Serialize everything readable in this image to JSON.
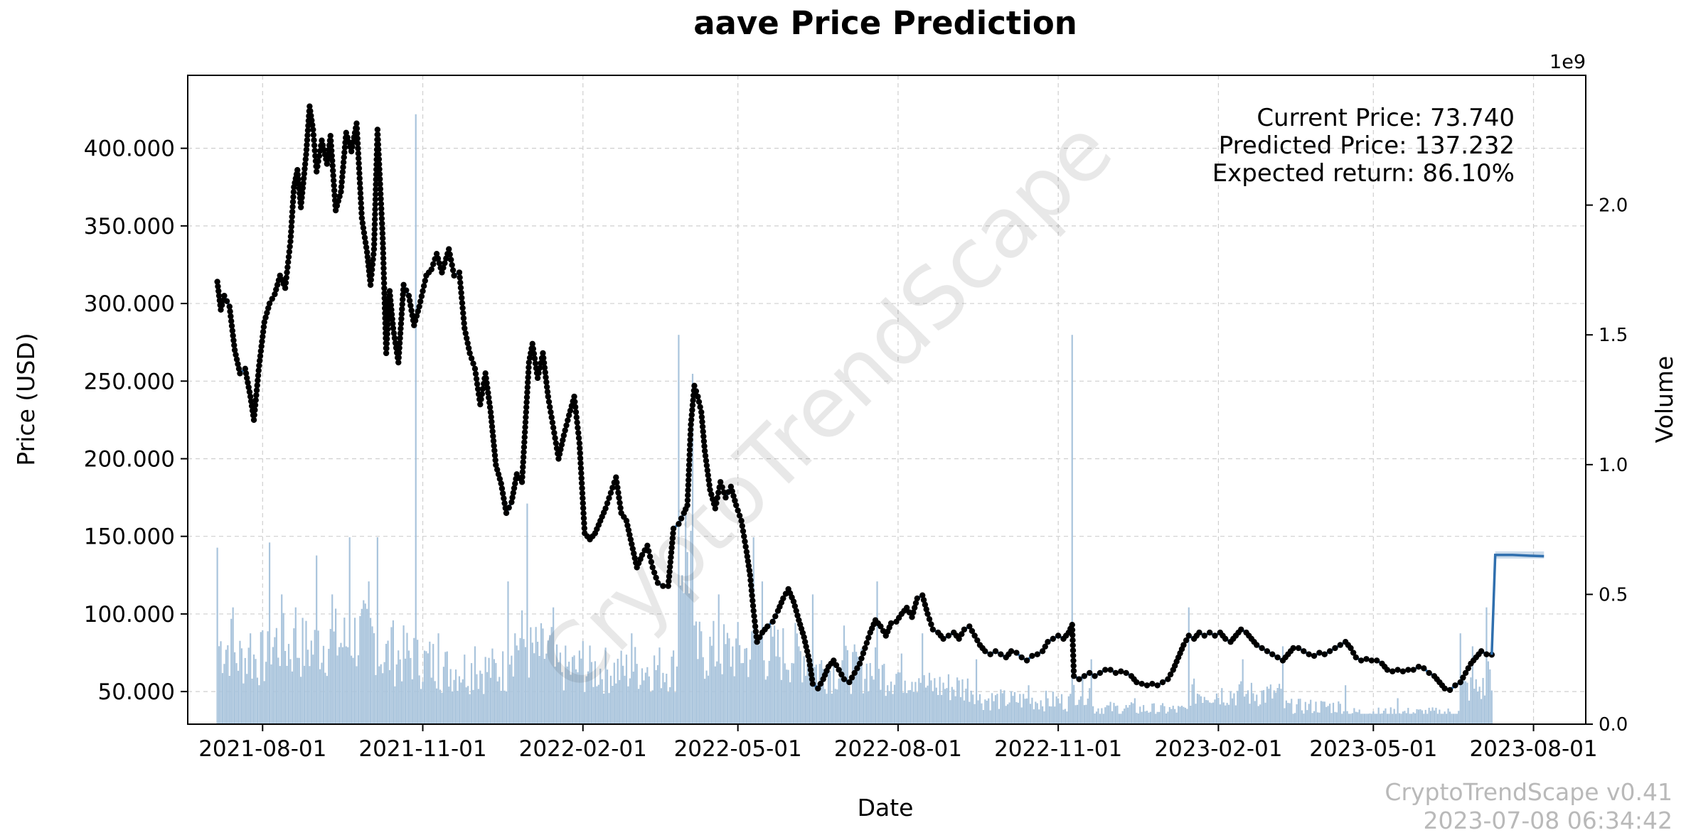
{
  "chart_data": {
    "type": "line",
    "title": "aave Price Prediction",
    "xlabel": "Date",
    "ylabel": "Price (USD)",
    "y2label": "Volume",
    "y2_offset_label": "1e9",
    "x_tick_labels": [
      "2021-08-01",
      "2021-11-01",
      "2022-02-01",
      "2022-05-01",
      "2022-08-01",
      "2022-11-01",
      "2023-02-01",
      "2023-05-01",
      "2023-08-01"
    ],
    "y_tick_labels": [
      "50.000",
      "100.000",
      "150.000",
      "200.000",
      "250.000",
      "300.000",
      "350.000",
      "400.000"
    ],
    "y2_tick_labels": [
      "0.0",
      "0.5",
      "1.0",
      "1.5",
      "2.0"
    ],
    "xlim": [
      "2021-06-19",
      "2023-08-31"
    ],
    "ylim": [
      29,
      447
    ],
    "y2lim": [
      0,
      2.5
    ],
    "grid": true,
    "colors": {
      "price_line": "#2f6fae",
      "price_points": "#000000",
      "volume_bars": "#a9c4dc",
      "prediction": "#2f6fae"
    },
    "price_series": [
      [
        "2021-07-06",
        314
      ],
      [
        "2021-07-08",
        296
      ],
      [
        "2021-07-10",
        305
      ],
      [
        "2021-07-13",
        298
      ],
      [
        "2021-07-16",
        270
      ],
      [
        "2021-07-19",
        255
      ],
      [
        "2021-07-22",
        258
      ],
      [
        "2021-07-25",
        240
      ],
      [
        "2021-07-27",
        225
      ],
      [
        "2021-07-30",
        260
      ],
      [
        "2021-08-02",
        288
      ],
      [
        "2021-08-05",
        300
      ],
      [
        "2021-08-08",
        306
      ],
      [
        "2021-08-11",
        318
      ],
      [
        "2021-08-14",
        310
      ],
      [
        "2021-08-17",
        340
      ],
      [
        "2021-08-19",
        375
      ],
      [
        "2021-08-21",
        386
      ],
      [
        "2021-08-23",
        362
      ],
      [
        "2021-08-26",
        396
      ],
      [
        "2021-08-28",
        427
      ],
      [
        "2021-08-30",
        412
      ],
      [
        "2021-09-01",
        385
      ],
      [
        "2021-09-04",
        405
      ],
      [
        "2021-09-07",
        390
      ],
      [
        "2021-09-09",
        408
      ],
      [
        "2021-09-12",
        360
      ],
      [
        "2021-09-15",
        372
      ],
      [
        "2021-09-18",
        410
      ],
      [
        "2021-09-21",
        398
      ],
      [
        "2021-09-24",
        416
      ],
      [
        "2021-09-27",
        355
      ],
      [
        "2021-09-30",
        333
      ],
      [
        "2021-10-02",
        312
      ],
      [
        "2021-10-04",
        335
      ],
      [
        "2021-10-06",
        412
      ],
      [
        "2021-10-09",
        342
      ],
      [
        "2021-10-11",
        268
      ],
      [
        "2021-10-13",
        308
      ],
      [
        "2021-10-15",
        284
      ],
      [
        "2021-10-18",
        262
      ],
      [
        "2021-10-21",
        312
      ],
      [
        "2021-10-24",
        305
      ],
      [
        "2021-10-27",
        286
      ],
      [
        "2021-10-30",
        298
      ],
      [
        "2021-11-03",
        318
      ],
      [
        "2021-11-06",
        322
      ],
      [
        "2021-11-09",
        332
      ],
      [
        "2021-11-12",
        320
      ],
      [
        "2021-11-16",
        335
      ],
      [
        "2021-11-19",
        318
      ],
      [
        "2021-11-22",
        320
      ],
      [
        "2021-11-25",
        284
      ],
      [
        "2021-11-28",
        268
      ],
      [
        "2021-12-01",
        258
      ],
      [
        "2021-12-04",
        235
      ],
      [
        "2021-12-07",
        255
      ],
      [
        "2021-12-10",
        230
      ],
      [
        "2021-12-13",
        196
      ],
      [
        "2021-12-16",
        184
      ],
      [
        "2021-12-19",
        165
      ],
      [
        "2021-12-22",
        172
      ],
      [
        "2021-12-25",
        190
      ],
      [
        "2021-12-28",
        185
      ],
      [
        "2022-01-01",
        262
      ],
      [
        "2022-01-03",
        274
      ],
      [
        "2022-01-06",
        252
      ],
      [
        "2022-01-09",
        268
      ],
      [
        "2022-01-12",
        240
      ],
      [
        "2022-01-15",
        220
      ],
      [
        "2022-01-18",
        200
      ],
      [
        "2022-01-21",
        215
      ],
      [
        "2022-01-24",
        228
      ],
      [
        "2022-01-27",
        240
      ],
      [
        "2022-01-30",
        210
      ],
      [
        "2022-02-02",
        152
      ],
      [
        "2022-02-05",
        148
      ],
      [
        "2022-02-08",
        152
      ],
      [
        "2022-02-11",
        160
      ],
      [
        "2022-02-14",
        168
      ],
      [
        "2022-02-17",
        178
      ],
      [
        "2022-02-20",
        188
      ],
      [
        "2022-02-23",
        165
      ],
      [
        "2022-02-26",
        160
      ],
      [
        "2022-03-01",
        145
      ],
      [
        "2022-03-04",
        130
      ],
      [
        "2022-03-07",
        138
      ],
      [
        "2022-03-10",
        144
      ],
      [
        "2022-03-13",
        130
      ],
      [
        "2022-03-16",
        120
      ],
      [
        "2022-03-19",
        118
      ],
      [
        "2022-03-22",
        118
      ],
      [
        "2022-03-25",
        155
      ],
      [
        "2022-03-28",
        158
      ],
      [
        "2022-03-31",
        165
      ],
      [
        "2022-04-02",
        170
      ],
      [
        "2022-04-04",
        222
      ],
      [
        "2022-04-06",
        247
      ],
      [
        "2022-04-08",
        240
      ],
      [
        "2022-04-10",
        230
      ],
      [
        "2022-04-12",
        205
      ],
      [
        "2022-04-15",
        180
      ],
      [
        "2022-04-18",
        168
      ],
      [
        "2022-04-21",
        185
      ],
      [
        "2022-04-24",
        175
      ],
      [
        "2022-04-27",
        182
      ],
      [
        "2022-04-30",
        170
      ],
      [
        "2022-05-03",
        160
      ],
      [
        "2022-05-06",
        140
      ],
      [
        "2022-05-08",
        125
      ],
      [
        "2022-05-10",
        102
      ],
      [
        "2022-05-12",
        82
      ],
      [
        "2022-05-15",
        88
      ],
      [
        "2022-05-18",
        92
      ],
      [
        "2022-05-21",
        95
      ],
      [
        "2022-05-24",
        102
      ],
      [
        "2022-05-27",
        110
      ],
      [
        "2022-05-30",
        116
      ],
      [
        "2022-06-02",
        108
      ],
      [
        "2022-06-05",
        96
      ],
      [
        "2022-06-08",
        85
      ],
      [
        "2022-06-11",
        70
      ],
      [
        "2022-06-13",
        55
      ],
      [
        "2022-06-16",
        52
      ],
      [
        "2022-06-19",
        58
      ],
      [
        "2022-06-22",
        66
      ],
      [
        "2022-06-25",
        70
      ],
      [
        "2022-06-28",
        64
      ],
      [
        "2022-07-01",
        58
      ],
      [
        "2022-07-04",
        56
      ],
      [
        "2022-07-07",
        62
      ],
      [
        "2022-07-10",
        68
      ],
      [
        "2022-07-13",
        78
      ],
      [
        "2022-07-16",
        88
      ],
      [
        "2022-07-19",
        96
      ],
      [
        "2022-07-22",
        92
      ],
      [
        "2022-07-25",
        86
      ],
      [
        "2022-07-28",
        94
      ],
      [
        "2022-07-31",
        95
      ],
      [
        "2022-08-03",
        100
      ],
      [
        "2022-08-06",
        104
      ],
      [
        "2022-08-09",
        98
      ],
      [
        "2022-08-12",
        110
      ],
      [
        "2022-08-15",
        112
      ],
      [
        "2022-08-18",
        100
      ],
      [
        "2022-08-21",
        90
      ],
      [
        "2022-08-24",
        88
      ],
      [
        "2022-08-27",
        84
      ],
      [
        "2022-08-30",
        86
      ],
      [
        "2022-09-02",
        88
      ],
      [
        "2022-09-05",
        84
      ],
      [
        "2022-09-08",
        90
      ],
      [
        "2022-09-11",
        92
      ],
      [
        "2022-09-14",
        86
      ],
      [
        "2022-09-17",
        80
      ],
      [
        "2022-09-20",
        76
      ],
      [
        "2022-09-23",
        74
      ],
      [
        "2022-09-26",
        76
      ],
      [
        "2022-09-29",
        74
      ],
      [
        "2022-10-02",
        72
      ],
      [
        "2022-10-05",
        76
      ],
      [
        "2022-10-08",
        75
      ],
      [
        "2022-10-11",
        72
      ],
      [
        "2022-10-14",
        70
      ],
      [
        "2022-10-17",
        73
      ],
      [
        "2022-10-20",
        74
      ],
      [
        "2022-10-23",
        76
      ],
      [
        "2022-10-26",
        82
      ],
      [
        "2022-10-29",
        84
      ],
      [
        "2022-11-01",
        86
      ],
      [
        "2022-11-04",
        84
      ],
      [
        "2022-11-07",
        88
      ],
      [
        "2022-11-09",
        93
      ],
      [
        "2022-11-10",
        60
      ],
      [
        "2022-11-13",
        58
      ],
      [
        "2022-11-16",
        60
      ],
      [
        "2022-11-19",
        62
      ],
      [
        "2022-11-22",
        60
      ],
      [
        "2022-11-25",
        62
      ],
      [
        "2022-11-28",
        64
      ],
      [
        "2022-12-01",
        64
      ],
      [
        "2022-12-04",
        62
      ],
      [
        "2022-12-07",
        63
      ],
      [
        "2022-12-10",
        62
      ],
      [
        "2022-12-13",
        60
      ],
      [
        "2022-12-16",
        56
      ],
      [
        "2022-12-19",
        55
      ],
      [
        "2022-12-22",
        54
      ],
      [
        "2022-12-25",
        55
      ],
      [
        "2022-12-28",
        54
      ],
      [
        "2022-12-31",
        56
      ],
      [
        "2023-01-03",
        58
      ],
      [
        "2023-01-06",
        64
      ],
      [
        "2023-01-09",
        72
      ],
      [
        "2023-01-12",
        80
      ],
      [
        "2023-01-15",
        86
      ],
      [
        "2023-01-18",
        84
      ],
      [
        "2023-01-21",
        88
      ],
      [
        "2023-01-24",
        86
      ],
      [
        "2023-01-27",
        88
      ],
      [
        "2023-01-30",
        86
      ],
      [
        "2023-02-02",
        88
      ],
      [
        "2023-02-05",
        84
      ],
      [
        "2023-02-08",
        82
      ],
      [
        "2023-02-11",
        86
      ],
      [
        "2023-02-14",
        90
      ],
      [
        "2023-02-17",
        88
      ],
      [
        "2023-02-20",
        84
      ],
      [
        "2023-02-23",
        80
      ],
      [
        "2023-02-26",
        78
      ],
      [
        "2023-03-01",
        76
      ],
      [
        "2023-03-04",
        74
      ],
      [
        "2023-03-07",
        72
      ],
      [
        "2023-03-10",
        70
      ],
      [
        "2023-03-13",
        74
      ],
      [
        "2023-03-16",
        78
      ],
      [
        "2023-03-19",
        78
      ],
      [
        "2023-03-22",
        76
      ],
      [
        "2023-03-25",
        74
      ],
      [
        "2023-03-28",
        73
      ],
      [
        "2023-03-31",
        75
      ],
      [
        "2023-04-03",
        74
      ],
      [
        "2023-04-06",
        76
      ],
      [
        "2023-04-09",
        78
      ],
      [
        "2023-04-12",
        80
      ],
      [
        "2023-04-15",
        82
      ],
      [
        "2023-04-18",
        78
      ],
      [
        "2023-04-21",
        72
      ],
      [
        "2023-04-24",
        70
      ],
      [
        "2023-04-27",
        71
      ],
      [
        "2023-04-30",
        70
      ],
      [
        "2023-05-03",
        70
      ],
      [
        "2023-05-06",
        68
      ],
      [
        "2023-05-09",
        64
      ],
      [
        "2023-05-12",
        63
      ],
      [
        "2023-05-15",
        64
      ],
      [
        "2023-05-18",
        63
      ],
      [
        "2023-05-21",
        64
      ],
      [
        "2023-05-24",
        64
      ],
      [
        "2023-05-27",
        66
      ],
      [
        "2023-05-30",
        65
      ],
      [
        "2023-06-02",
        62
      ],
      [
        "2023-06-05",
        60
      ],
      [
        "2023-06-08",
        56
      ],
      [
        "2023-06-11",
        52
      ],
      [
        "2023-06-14",
        51
      ],
      [
        "2023-06-17",
        54
      ],
      [
        "2023-06-20",
        56
      ],
      [
        "2023-06-23",
        62
      ],
      [
        "2023-06-26",
        68
      ],
      [
        "2023-06-29",
        72
      ],
      [
        "2023-07-02",
        76
      ],
      [
        "2023-07-05",
        74
      ],
      [
        "2023-07-08",
        73.74
      ]
    ],
    "prediction_series": [
      [
        "2023-07-08",
        73.74
      ],
      [
        "2023-07-10",
        138
      ],
      [
        "2023-07-20",
        138
      ],
      [
        "2023-07-30",
        137.5
      ],
      [
        "2023-08-07",
        137.23
      ]
    ],
    "volume_peaks": [
      [
        "2021-07-06",
        0.68
      ],
      [
        "2021-07-15",
        0.45
      ],
      [
        "2021-07-25",
        0.35
      ],
      [
        "2021-08-05",
        0.7
      ],
      [
        "2021-08-12",
        0.5
      ],
      [
        "2021-08-20",
        0.45
      ],
      [
        "2021-09-01",
        0.65
      ],
      [
        "2021-09-10",
        0.5
      ],
      [
        "2021-09-20",
        0.72
      ],
      [
        "2021-10-01",
        0.55
      ],
      [
        "2021-10-06",
        0.72
      ],
      [
        "2021-10-15",
        0.4
      ],
      [
        "2021-10-28",
        2.35
      ],
      [
        "2021-11-10",
        0.35
      ],
      [
        "2021-12-01",
        0.3
      ],
      [
        "2021-12-20",
        0.55
      ],
      [
        "2021-12-31",
        0.85
      ],
      [
        "2022-01-15",
        0.45
      ],
      [
        "2022-02-01",
        0.32
      ],
      [
        "2022-03-01",
        0.35
      ],
      [
        "2022-03-28",
        1.5
      ],
      [
        "2022-04-05",
        1.35
      ],
      [
        "2022-04-20",
        0.5
      ],
      [
        "2022-05-10",
        0.72
      ],
      [
        "2022-05-15",
        0.55
      ],
      [
        "2022-06-13",
        0.5
      ],
      [
        "2022-07-01",
        0.38
      ],
      [
        "2022-07-20",
        0.55
      ],
      [
        "2022-08-15",
        0.35
      ],
      [
        "2022-09-15",
        0.25
      ],
      [
        "2022-10-15",
        0.15
      ],
      [
        "2022-11-09",
        1.5
      ],
      [
        "2022-11-20",
        0.25
      ],
      [
        "2022-12-15",
        0.1
      ],
      [
        "2023-01-15",
        0.45
      ],
      [
        "2023-02-15",
        0.25
      ],
      [
        "2023-03-10",
        0.3
      ],
      [
        "2023-04-15",
        0.15
      ],
      [
        "2023-05-15",
        0.1
      ],
      [
        "2023-06-20",
        0.35
      ],
      [
        "2023-06-27",
        0.3
      ],
      [
        "2023-07-05",
        0.45
      ]
    ]
  },
  "info": {
    "current": "Current Price: 73.740",
    "predicted": "Predicted Price: 137.232",
    "expected": "Expected return: 86.10%"
  },
  "watermark": "CryptoTrendScape",
  "footer": {
    "version": "CryptoTrendScape v0.41",
    "timestamp": "2023-07-08 06:34:42"
  }
}
